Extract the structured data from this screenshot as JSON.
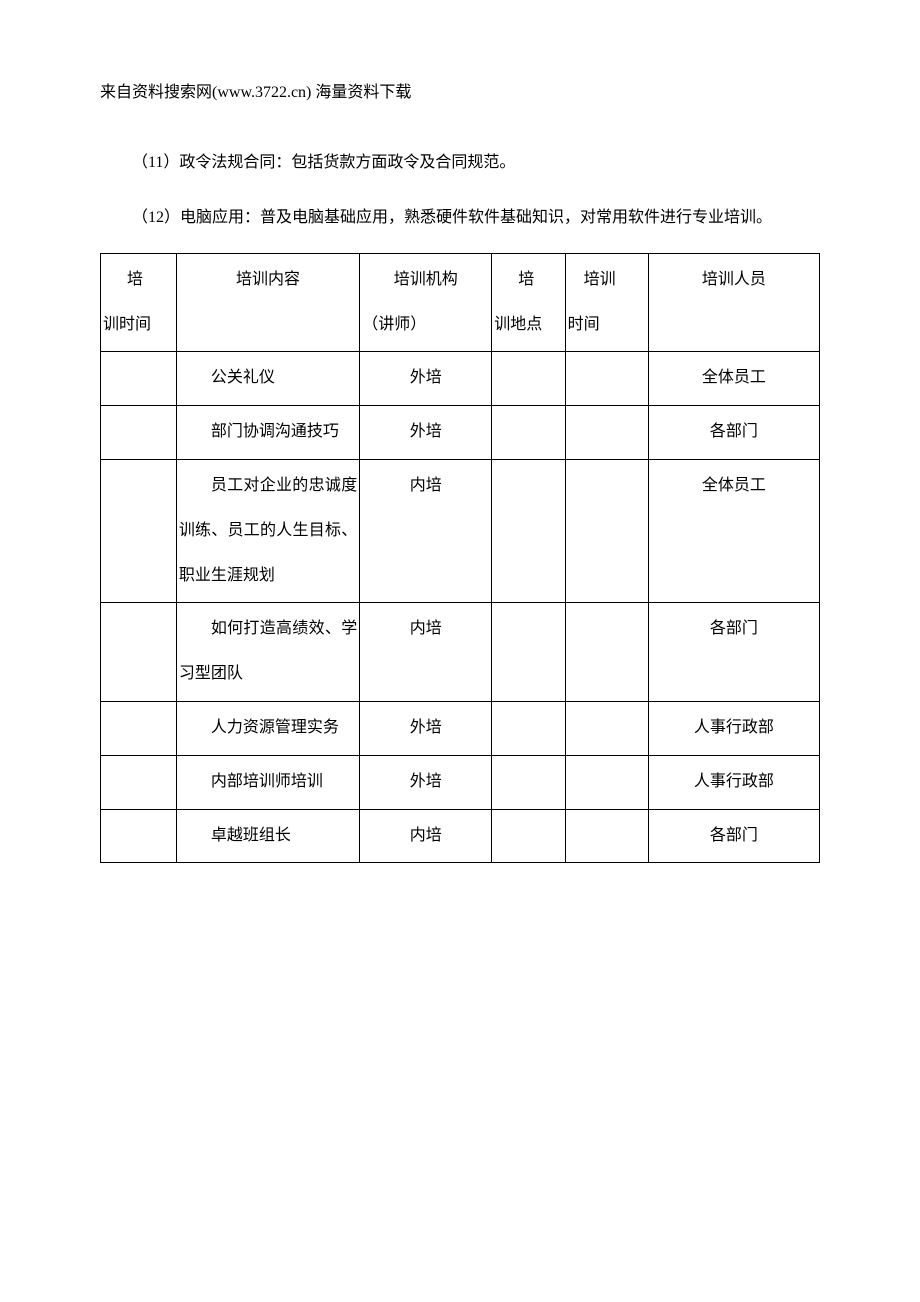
{
  "header": "来自资料搜索网(www.3722.cn) 海量资料下载",
  "paragraphs": {
    "p11": "（11）政令法规合同：包括货款方面政令及合同规范。",
    "p12": "（12）电脑应用：普及电脑基础应用，熟悉硬件软件基础知识，对常用软件进行专业培训。"
  },
  "table": {
    "headers": {
      "col1_line1": "培",
      "col1_line2": "训时间",
      "col2": "培训内容",
      "col3_line1": "培训机构",
      "col3_line2": "（讲师）",
      "col4_line1": "培",
      "col4_line2": "训地点",
      "col5_line1": "培训",
      "col5_line2": "时间",
      "col6": "培训人员"
    },
    "rows": [
      {
        "col1": "",
        "col2": "公关礼仪",
        "col3": "外培",
        "col4": "",
        "col5": "",
        "col6": "全体员工"
      },
      {
        "col1": "",
        "col2": "部门协调沟通技巧",
        "col3": "外培",
        "col4": "",
        "col5": "",
        "col6": "各部门"
      },
      {
        "col1": "",
        "col2": "员工对企业的忠诚度训练、员工的人生目标、职业生涯规划",
        "col3": "内培",
        "col4": "",
        "col5": "",
        "col6": "全体员工"
      },
      {
        "col1": "",
        "col2": "如何打造高绩效、学习型团队",
        "col3": "内培",
        "col4": "",
        "col5": "",
        "col6": "各部门"
      },
      {
        "col1": "",
        "col2": "人力资源管理实务",
        "col3": "外培",
        "col4": "",
        "col5": "",
        "col6": "人事行政部"
      },
      {
        "col1": "",
        "col2": "内部培训师培训",
        "col3": "外培",
        "col4": "",
        "col5": "",
        "col6": "人事行政部"
      },
      {
        "col1": "",
        "col2": "卓越班组长",
        "col3": "内培",
        "col4": "",
        "col5": "",
        "col6": "各部门"
      }
    ]
  }
}
